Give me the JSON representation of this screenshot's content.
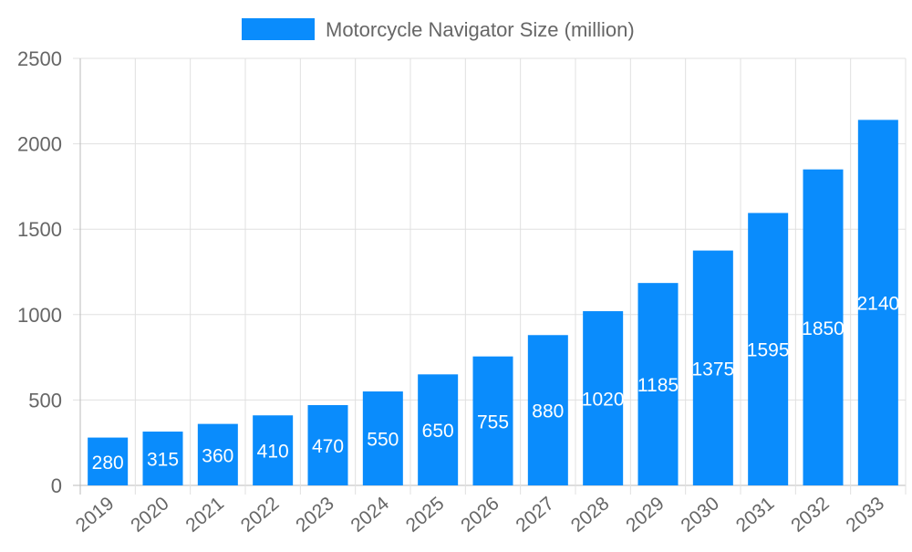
{
  "chart_data": {
    "type": "bar",
    "categories": [
      "2019",
      "2020",
      "2021",
      "2022",
      "2023",
      "2024",
      "2025",
      "2026",
      "2027",
      "2028",
      "2029",
      "2030",
      "2031",
      "2032",
      "2033"
    ],
    "series": [
      {
        "name": "Motorcycle Navigator Size (million)",
        "values": [
          280,
          315,
          360,
          410,
          470,
          550,
          650,
          755,
          880,
          1020,
          1185,
          1375,
          1595,
          1850,
          2140
        ],
        "color": "#0a8cfc"
      }
    ],
    "ylim": [
      0,
      2500
    ],
    "yticks": [
      0,
      500,
      1000,
      1500,
      2000,
      2500
    ],
    "grid": true,
    "legend_position": "top",
    "data_labels": true,
    "xlabel": "",
    "ylabel": ""
  }
}
